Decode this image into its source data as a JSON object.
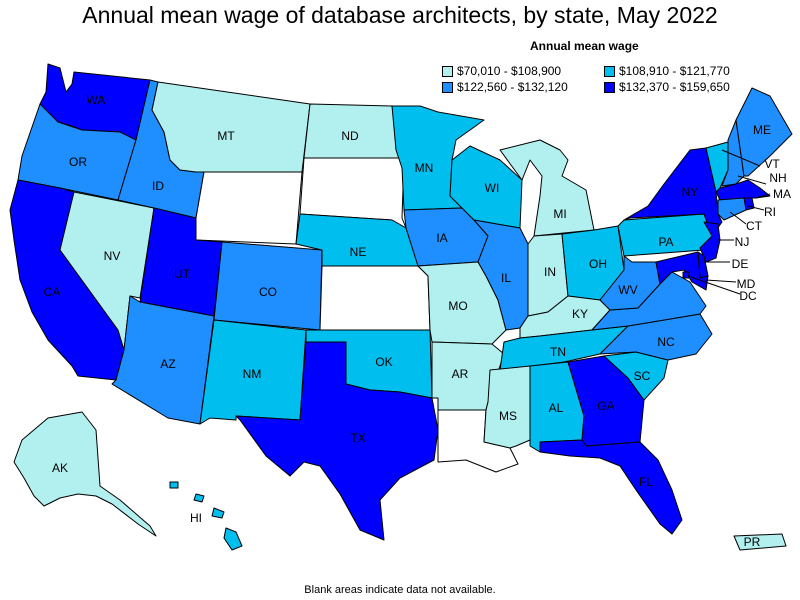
{
  "title": "Annual mean wage of database architects, by state, May 2022",
  "legend": {
    "title": "Annual mean wage",
    "items": [
      {
        "label": "$70,010 - $108,900",
        "color": "#b2efef"
      },
      {
        "label": "$108,910 - $121,770",
        "color": "#00bfef"
      },
      {
        "label": "$122,560 - $132,120",
        "color": "#1f8fff"
      },
      {
        "label": "$132,370 - $159,650",
        "color": "#0000ff"
      }
    ]
  },
  "footnote": "Blank areas indicate data not available.",
  "states": {
    "WA": {
      "label": "WA",
      "color": "#0000ff"
    },
    "OR": {
      "label": "OR",
      "color": "#1f8fff"
    },
    "CA": {
      "label": "CA",
      "color": "#0000ff"
    },
    "NV": {
      "label": "NV",
      "color": "#b2efef"
    },
    "ID": {
      "label": "ID",
      "color": "#1f8fff"
    },
    "MT": {
      "label": "MT",
      "color": "#b2efef"
    },
    "WY": {
      "label": "",
      "color": "#ffffff"
    },
    "UT": {
      "label": "UT",
      "color": "#0000ff"
    },
    "AZ": {
      "label": "AZ",
      "color": "#1f8fff"
    },
    "CO": {
      "label": "CO",
      "color": "#1f8fff"
    },
    "NM": {
      "label": "NM",
      "color": "#00bfef"
    },
    "ND": {
      "label": "ND",
      "color": "#b2efef"
    },
    "SD": {
      "label": "",
      "color": "#ffffff"
    },
    "NE": {
      "label": "NE",
      "color": "#00bfef"
    },
    "KS": {
      "label": "",
      "color": "#ffffff"
    },
    "OK": {
      "label": "OK",
      "color": "#00bfef"
    },
    "TX": {
      "label": "TX",
      "color": "#0000ff"
    },
    "MN": {
      "label": "MN",
      "color": "#00bfef"
    },
    "IA": {
      "label": "IA",
      "color": "#1f8fff"
    },
    "MO": {
      "label": "MO",
      "color": "#b2efef"
    },
    "AR": {
      "label": "AR",
      "color": "#b2efef"
    },
    "LA": {
      "label": "",
      "color": "#ffffff"
    },
    "WI": {
      "label": "WI",
      "color": "#00bfef"
    },
    "IL": {
      "label": "IL",
      "color": "#1f8fff"
    },
    "MI": {
      "label": "MI",
      "color": "#b2efef"
    },
    "IN": {
      "label": "IN",
      "color": "#b2efef"
    },
    "OH": {
      "label": "OH",
      "color": "#00bfef"
    },
    "KY": {
      "label": "KY",
      "color": "#b2efef"
    },
    "TN": {
      "label": "TN",
      "color": "#00bfef"
    },
    "MS": {
      "label": "MS",
      "color": "#b2efef"
    },
    "AL": {
      "label": "AL",
      "color": "#00bfef"
    },
    "GA": {
      "label": "GA",
      "color": "#0000ff"
    },
    "FL": {
      "label": "FL",
      "color": "#0000ff"
    },
    "SC": {
      "label": "SC",
      "color": "#00bfef"
    },
    "NC": {
      "label": "NC",
      "color": "#1f8fff"
    },
    "VA": {
      "label": "",
      "color": "#1f8fff"
    },
    "WV": {
      "label": "WV",
      "color": "#1f8fff"
    },
    "PA": {
      "label": "PA",
      "color": "#00bfef"
    },
    "NY": {
      "label": "NY",
      "color": "#0000ff"
    },
    "VT": {
      "label": "VT",
      "color": "#00bfef"
    },
    "NH": {
      "label": "NH",
      "color": "#1f8fff"
    },
    "ME": {
      "label": "ME",
      "color": "#1f8fff"
    },
    "MA": {
      "label": "MA",
      "color": "#0000ff"
    },
    "RI": {
      "label": "RI",
      "color": "#0000ff"
    },
    "CT": {
      "label": "CT",
      "color": "#1f8fff"
    },
    "NJ": {
      "label": "NJ",
      "color": "#0000ff"
    },
    "DE": {
      "label": "DE",
      "color": "#0000ff"
    },
    "MD": {
      "label": "MD",
      "color": "#0000ff"
    },
    "DC": {
      "label": "DC",
      "color": "#0000ff"
    },
    "AK": {
      "label": "AK",
      "color": "#b2efef"
    },
    "HI": {
      "label": "HI",
      "color": "#00bfef"
    },
    "PR": {
      "label": "PR",
      "color": "#b2efef"
    }
  }
}
